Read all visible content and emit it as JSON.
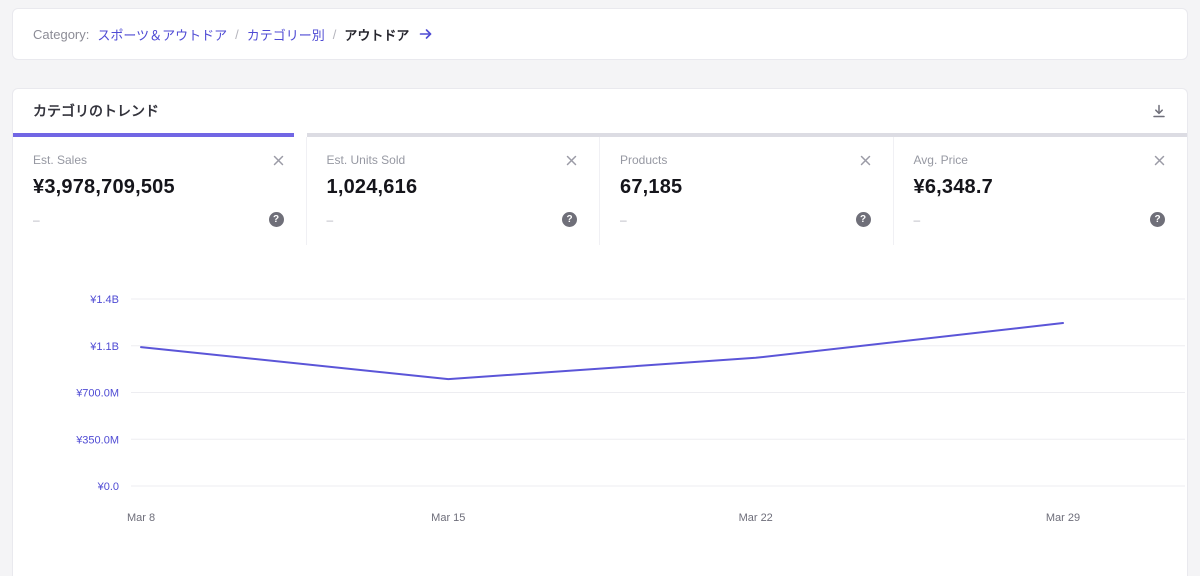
{
  "colors": {
    "accent": "#4f4bd4",
    "line": "#5b55d8",
    "tab_active": "#7166e4",
    "gridline": "#ededf1",
    "tick_label": "#4f4bd4",
    "x_label": "#6e6e7a"
  },
  "breadcrumb": {
    "label": "Category:",
    "separator": "/",
    "items": [
      {
        "text": "スポーツ＆アウトドア"
      },
      {
        "text": "カテゴリー別"
      },
      {
        "text": "アウトドア"
      }
    ]
  },
  "panel": {
    "title": "カテゴリのトレンド"
  },
  "icons": {
    "help_glyph": "?"
  },
  "metrics": [
    {
      "label": "Est. Sales",
      "value": "¥3,978,709,505",
      "sub": "–"
    },
    {
      "label": "Est. Units Sold",
      "value": "1,024,616",
      "sub": "–"
    },
    {
      "label": "Products",
      "value": "67,185",
      "sub": "–"
    },
    {
      "label": "Avg. Price",
      "value": "¥6,348.7",
      "sub": "–"
    }
  ],
  "chart_data": {
    "type": "line",
    "title": "カテゴリのトレンド",
    "x": [
      "Mar 8",
      "Mar 15",
      "Mar 22",
      "Mar 29"
    ],
    "series": [
      {
        "name": "Est. Sales",
        "values": [
          1040000000,
          800000000,
          960000000,
          1220000000
        ]
      }
    ],
    "ylim": [
      0,
      1400000000
    ],
    "y_ticks": [
      {
        "value": 0,
        "label": "¥0.0"
      },
      {
        "value": 350000000,
        "label": "¥350.0M"
      },
      {
        "value": 700000000,
        "label": "¥700.0M"
      },
      {
        "value": 1050000000,
        "label": "¥1.1B"
      },
      {
        "value": 1400000000,
        "label": "¥1.4B"
      }
    ],
    "grid": "horizontal",
    "legend": "none"
  }
}
